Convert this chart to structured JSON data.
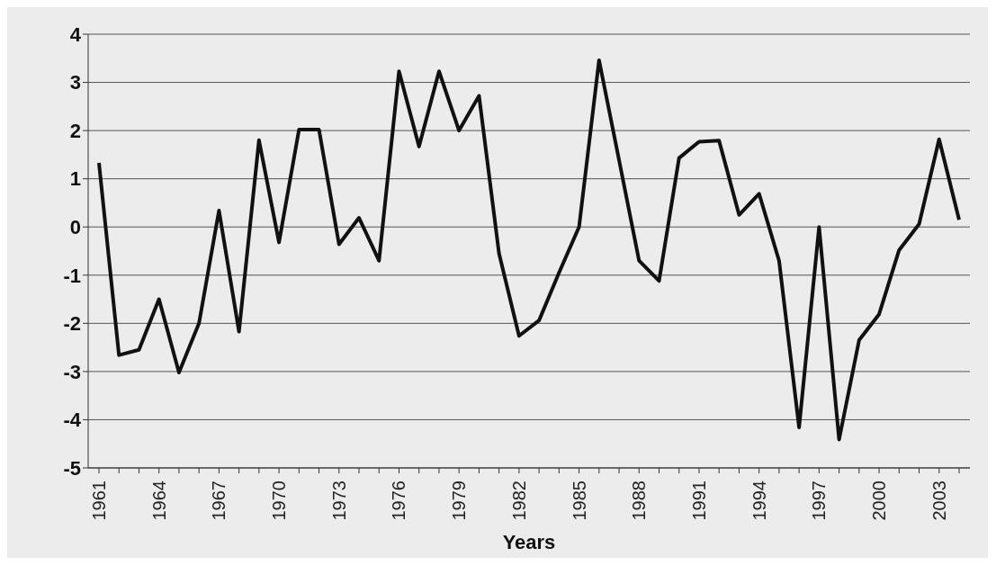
{
  "chart_data": {
    "type": "line",
    "xlabel": "Years",
    "categories": [
      "1961",
      null,
      null,
      "1964",
      null,
      null,
      "1967",
      null,
      null,
      "1970",
      null,
      null,
      "1973",
      null,
      null,
      "1976",
      null,
      null,
      "1979",
      null,
      null,
      "1982",
      null,
      null,
      "1985",
      null,
      null,
      "1988",
      null,
      null,
      "1991",
      null,
      null,
      "1994",
      null,
      null,
      "1997",
      null,
      null,
      "2000",
      null,
      null,
      "2003",
      null
    ],
    "series": [
      {
        "color": "#111111",
        "values": [
          1.33,
          -2.66,
          -2.55,
          -1.5,
          -3.02,
          -2.0,
          0.34,
          -2.17,
          1.8,
          -0.32,
          2.02,
          2.02,
          -0.36,
          0.19,
          -0.7,
          3.23,
          1.67,
          3.23,
          2.0,
          2.72,
          -0.55,
          -2.26,
          -1.94,
          -0.95,
          0.0,
          3.46,
          1.39,
          -0.7,
          -1.12,
          1.43,
          1.77,
          1.79,
          0.25,
          0.69,
          -0.7,
          -4.16,
          0.0,
          -4.41,
          -2.35,
          -1.81,
          -0.48,
          0.06,
          1.82,
          0.15
        ]
      }
    ],
    "ylim": [
      -5,
      4
    ],
    "yticks": [
      -5,
      -4,
      -3,
      -2,
      -1,
      0,
      1,
      2,
      3,
      4
    ],
    "grid": "y",
    "marker": "none",
    "line_style": "solid"
  }
}
